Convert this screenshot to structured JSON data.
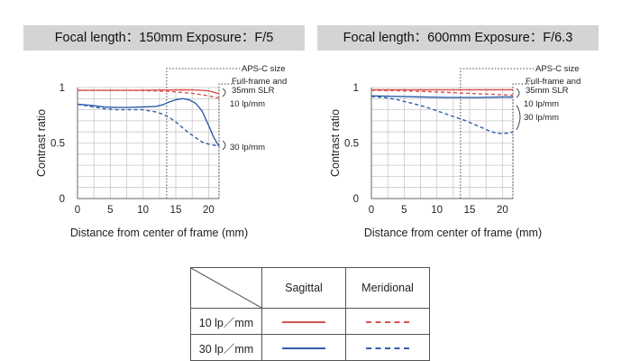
{
  "charts": [
    {
      "header": "Focal length：150mm   Exposure：F/5"
    },
    {
      "header": "Focal length：600mm   Exposure：F/6.3"
    }
  ],
  "chart_data": [
    {
      "type": "line",
      "xlabel": "Distance from center of frame (mm)",
      "ylabel": "Contrast ratio",
      "xlim": [
        0,
        21.6
      ],
      "ylim": [
        0,
        1
      ],
      "x_ticks": [
        "0",
        "5",
        "10",
        "15",
        "20"
      ],
      "y_ticks": [
        "0",
        "0.5",
        "1"
      ],
      "marker_labels": {
        "apsc": "APS-C size",
        "ff1": "Full-frame and",
        "ff2": "35mm SLR"
      },
      "apsc_x": 13.6,
      "annotations": {
        "lp10": "10 lp/mm",
        "lp30": "30 lp/mm"
      },
      "series": [
        {
          "color": "#d9534f",
          "style": "solid",
          "x": [
            0,
            4,
            8,
            12,
            14,
            16,
            18,
            20,
            21.6
          ],
          "y": [
            0.975,
            0.975,
            0.975,
            0.977,
            0.978,
            0.98,
            0.978,
            0.97,
            0.945
          ]
        },
        {
          "color": "#d9534f",
          "style": "dashed",
          "x": [
            0,
            4,
            8,
            12,
            14,
            16,
            18,
            20,
            21.6
          ],
          "y": [
            0.975,
            0.975,
            0.975,
            0.97,
            0.965,
            0.955,
            0.945,
            0.925,
            0.905
          ]
        },
        {
          "color": "#2f5fa8",
          "style": "solid",
          "x": [
            0,
            2,
            4,
            6,
            8,
            10,
            12,
            13,
            14,
            15,
            16,
            17,
            18,
            19,
            20,
            20.8,
            21.6
          ],
          "y": [
            0.85,
            0.84,
            0.825,
            0.82,
            0.82,
            0.825,
            0.83,
            0.845,
            0.87,
            0.89,
            0.9,
            0.89,
            0.86,
            0.79,
            0.66,
            0.55,
            0.47
          ]
        },
        {
          "color": "#2f5fa8",
          "style": "dashed",
          "x": [
            0,
            2,
            4,
            6,
            8,
            10,
            12,
            13,
            14,
            15,
            16,
            17,
            18,
            19,
            20,
            21,
            21.6
          ],
          "y": [
            0.85,
            0.83,
            0.81,
            0.8,
            0.8,
            0.8,
            0.78,
            0.76,
            0.73,
            0.69,
            0.64,
            0.59,
            0.55,
            0.51,
            0.49,
            0.48,
            0.48
          ]
        }
      ]
    },
    {
      "type": "line",
      "xlabel": "Distance from center of frame (mm)",
      "ylabel": "Contrast ratio",
      "xlim": [
        0,
        21.6
      ],
      "ylim": [
        0,
        1
      ],
      "x_ticks": [
        "0",
        "5",
        "10",
        "15",
        "20"
      ],
      "y_ticks": [
        "0",
        "0.5",
        "1"
      ],
      "marker_labels": {
        "apsc": "APS-C size",
        "ff1": "Full-frame and",
        "ff2": "35mm SLR"
      },
      "apsc_x": 13.6,
      "annotations": {
        "lp10": "10 lp/mm",
        "lp30": "30 lp/mm"
      },
      "series": [
        {
          "color": "#d9534f",
          "style": "solid",
          "x": [
            0,
            4,
            8,
            12,
            16,
            20,
            21.6
          ],
          "y": [
            0.98,
            0.98,
            0.98,
            0.98,
            0.98,
            0.98,
            0.98
          ]
        },
        {
          "color": "#d9534f",
          "style": "dashed",
          "x": [
            0,
            4,
            8,
            12,
            16,
            20,
            21.6
          ],
          "y": [
            0.975,
            0.972,
            0.965,
            0.955,
            0.945,
            0.935,
            0.93
          ]
        },
        {
          "color": "#2f5fa8",
          "style": "solid",
          "x": [
            0,
            4,
            8,
            12,
            16,
            20,
            21.6
          ],
          "y": [
            0.925,
            0.92,
            0.915,
            0.91,
            0.91,
            0.915,
            0.915
          ]
        },
        {
          "color": "#2f5fa8",
          "style": "dashed",
          "x": [
            0,
            2,
            4,
            6,
            8,
            10,
            12,
            14,
            16,
            18,
            19,
            20,
            21,
            21.6
          ],
          "y": [
            0.92,
            0.91,
            0.89,
            0.86,
            0.83,
            0.79,
            0.75,
            0.71,
            0.66,
            0.61,
            0.59,
            0.585,
            0.59,
            0.6
          ]
        }
      ]
    }
  ],
  "legend": {
    "sagittal": "Sagittal",
    "meridional": "Meridional",
    "rows": [
      {
        "label": "10 lp／mm",
        "color": "#d9534f"
      },
      {
        "label": "30 lp／mm",
        "color": "#2f5fa8"
      }
    ]
  }
}
